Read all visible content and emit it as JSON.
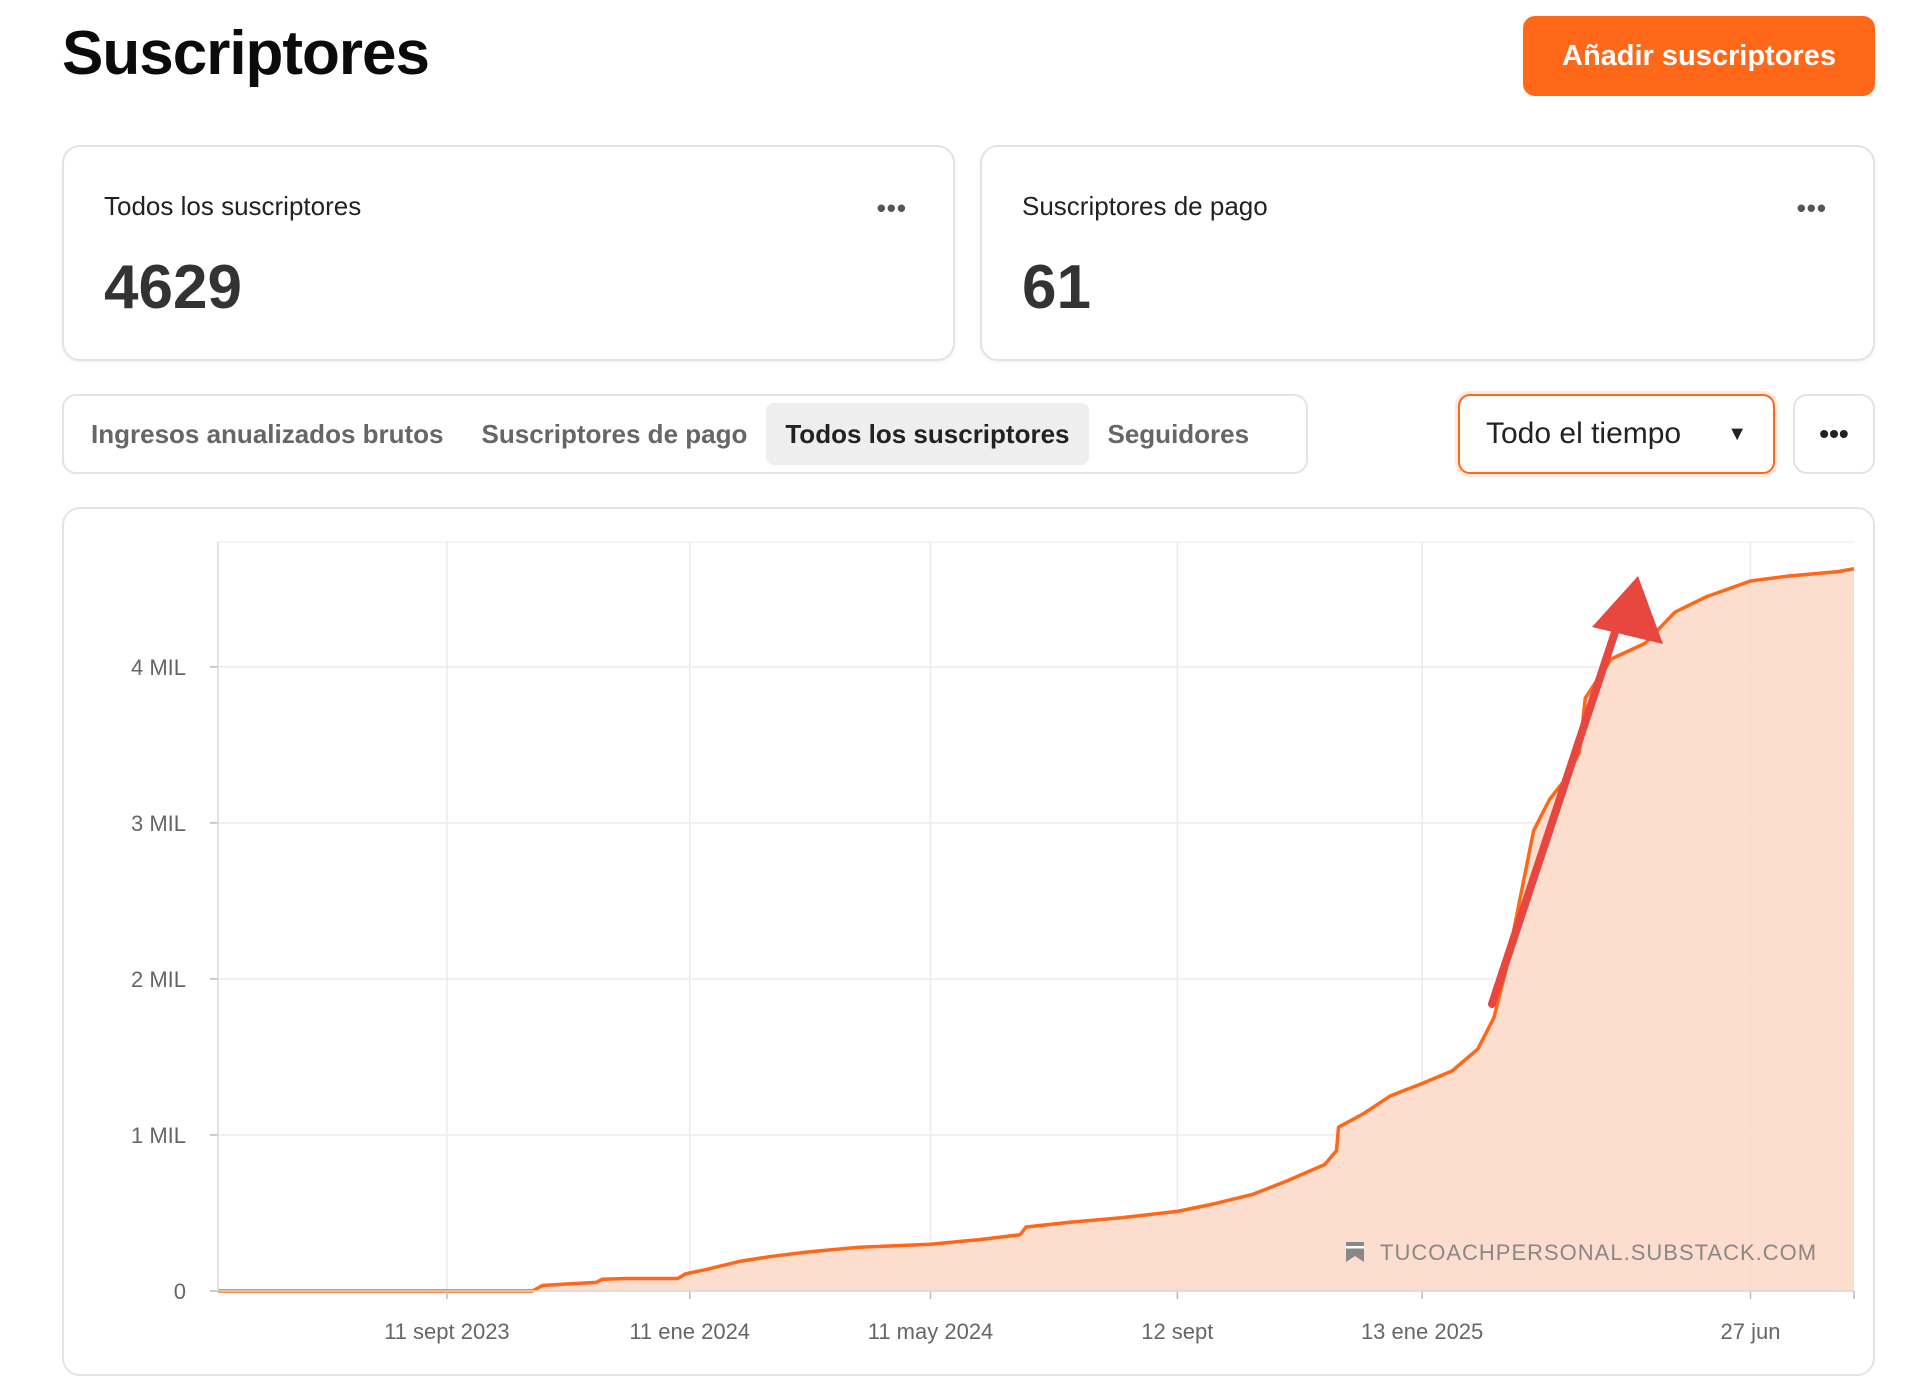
{
  "header": {
    "title": "Suscriptores",
    "add_button_label": "Añadir suscriptores"
  },
  "cards": [
    {
      "label": "Todos los suscriptores",
      "value": "4629",
      "menu_icon": "more-horizontal-icon"
    },
    {
      "label": "Suscriptores de pago",
      "value": "61",
      "menu_icon": "more-horizontal-icon"
    }
  ],
  "tabs": [
    {
      "label": "Ingresos anualizados brutos",
      "active": false
    },
    {
      "label": "Suscriptores de pago",
      "active": false
    },
    {
      "label": "Todos los suscriptores",
      "active": true
    },
    {
      "label": "Seguidores",
      "active": false
    }
  ],
  "range_select": {
    "value": "Todo el tiempo"
  },
  "watermark": "TUCOACHPERSONAL.SUBSTACK.COM",
  "colors": {
    "accent": "#ff6719",
    "fill": "#fdd9c8",
    "arrow": "#e8473f"
  },
  "chart_data": {
    "type": "area",
    "ylim": [
      0,
      4800
    ],
    "y_ticks": [
      0,
      1000,
      2000,
      3000,
      4000
    ],
    "y_tick_labels": [
      "0",
      "1 MIL",
      "2 MIL",
      "3 MIL",
      "4 MIL"
    ],
    "x_tick_labels": [
      "11 sept 2023",
      "11 ene 2024",
      "11 may 2024",
      "12 sept",
      "13 ene 2025",
      "27 jun"
    ],
    "x_tick_dates": [
      "2023-09-11",
      "2024-01-11",
      "2024-05-11",
      "2024-09-12",
      "2025-01-13",
      "2025-06-27"
    ],
    "xlim": [
      "2023-05-19",
      "2025-08-18"
    ],
    "grid": true,
    "series": [
      {
        "points": [
          [
            "2023-05-19",
            0
          ],
          [
            "2023-09-11",
            0
          ],
          [
            "2023-10-24",
            0
          ],
          [
            "2023-10-29",
            35
          ],
          [
            "2023-11-10",
            45
          ],
          [
            "2023-11-25",
            55
          ],
          [
            "2023-11-28",
            75
          ],
          [
            "2023-12-10",
            80
          ],
          [
            "2024-01-05",
            80
          ],
          [
            "2024-01-09",
            110
          ],
          [
            "2024-01-20",
            140
          ],
          [
            "2024-02-05",
            190
          ],
          [
            "2024-02-20",
            220
          ],
          [
            "2024-03-10",
            250
          ],
          [
            "2024-04-05",
            280
          ],
          [
            "2024-05-11",
            300
          ],
          [
            "2024-06-05",
            330
          ],
          [
            "2024-06-25",
            360
          ],
          [
            "2024-06-28",
            410
          ],
          [
            "2024-07-20",
            440
          ],
          [
            "2024-08-15",
            470
          ],
          [
            "2024-09-12",
            510
          ],
          [
            "2024-10-01",
            560
          ],
          [
            "2024-10-20",
            620
          ],
          [
            "2024-11-05",
            700
          ],
          [
            "2024-11-25",
            810
          ],
          [
            "2024-12-01",
            900
          ],
          [
            "2024-12-02",
            1050
          ],
          [
            "2024-12-15",
            1140
          ],
          [
            "2024-12-28",
            1250
          ],
          [
            "2025-01-13",
            1330
          ],
          [
            "2025-01-28",
            1410
          ],
          [
            "2025-02-10",
            1550
          ],
          [
            "2025-02-18",
            1750
          ],
          [
            "2025-02-24",
            2050
          ],
          [
            "2025-03-03",
            2500
          ],
          [
            "2025-03-10",
            2950
          ],
          [
            "2025-03-18",
            3150
          ],
          [
            "2025-03-26",
            3280
          ],
          [
            "2025-04-02",
            3450
          ],
          [
            "2025-04-05",
            3800
          ],
          [
            "2025-04-18",
            4050
          ],
          [
            "2025-05-05",
            4150
          ],
          [
            "2025-05-20",
            4350
          ],
          [
            "2025-06-05",
            4450
          ],
          [
            "2025-06-27",
            4550
          ],
          [
            "2025-07-15",
            4580
          ],
          [
            "2025-08-10",
            4610
          ],
          [
            "2025-08-18",
            4629
          ]
        ]
      }
    ]
  }
}
